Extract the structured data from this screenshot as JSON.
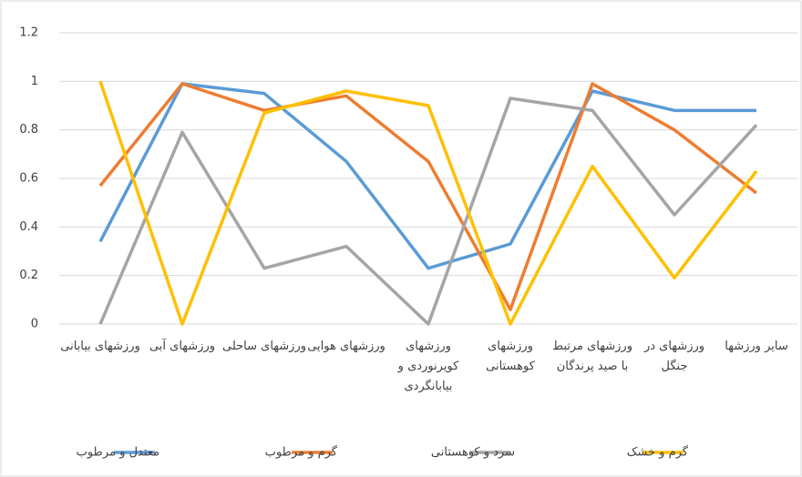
{
  "chart_data": {
    "type": "line",
    "categories": [
      "ورزشهای بیابانی",
      "ورزشهای آبی",
      "ورزشهای ساحلی",
      "ورزشهای هوایی",
      "ورزشهای کویرنوردی و بیابانگردی",
      "ورزشهای کوهستانی",
      "ورزشهای مرتبط با صید پرندگان",
      "ورزشهای در جنگل",
      "سایر ورزشها"
    ],
    "series": [
      {
        "name": "معتدل و مرطوب",
        "color": "#5b9bd5",
        "values": [
          0.34,
          0.99,
          0.95,
          0.67,
          0.23,
          0.33,
          0.96,
          0.88,
          0.88
        ]
      },
      {
        "name": "گرم و مرطوب",
        "color": "#ed7d31",
        "values": [
          0.57,
          0.99,
          0.88,
          0.94,
          0.67,
          0.06,
          0.99,
          0.8,
          0.54
        ]
      },
      {
        "name": "سرد و کوهستانی",
        "color": "#a5a5a5",
        "values": [
          0,
          0.79,
          0.23,
          0.32,
          0,
          0.93,
          0.88,
          0.45,
          0.82
        ]
      },
      {
        "name": "گرم و خشک",
        "color": "#ffc000",
        "values": [
          1,
          0,
          0.87,
          0.96,
          0.9,
          0,
          0.65,
          0.19,
          0.63
        ]
      }
    ],
    "ylim": [
      0,
      1.2
    ],
    "yticks": [
      0,
      0.2,
      0.4,
      0.6,
      0.8,
      1,
      1.2
    ],
    "grid": true,
    "legend": "bottom"
  }
}
